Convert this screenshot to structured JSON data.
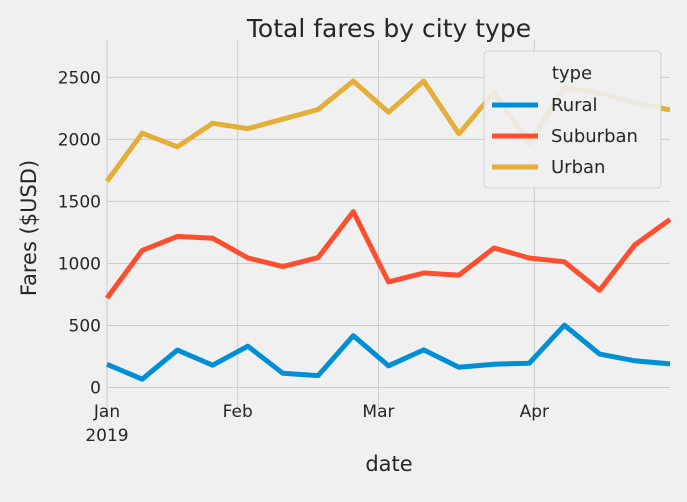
{
  "chart_data": {
    "type": "line",
    "title": "Total fares by city type",
    "xlabel": "date",
    "ylabel": "Fares ($USD)",
    "ylim": [
      -20,
      2640
    ],
    "yticks": [
      0,
      500,
      1000,
      1500,
      2000,
      2500
    ],
    "x": [
      "2019-01-06",
      "2019-01-13",
      "2019-01-20",
      "2019-01-27",
      "2019-02-03",
      "2019-02-10",
      "2019-02-17",
      "2019-02-24",
      "2019-03-03",
      "2019-03-10",
      "2019-03-17",
      "2019-03-24",
      "2019-03-31",
      "2019-04-07",
      "2019-04-14",
      "2019-04-21",
      "2019-04-28"
    ],
    "xlim": [
      "2019-01-06",
      "2019-04-28"
    ],
    "xticks": [
      {
        "date": "2019-01-06",
        "label": "Jan",
        "sublabel": "2019"
      },
      {
        "date": "2019-02-01",
        "label": "Feb",
        "sublabel": ""
      },
      {
        "date": "2019-03-01",
        "label": "Mar",
        "sublabel": ""
      },
      {
        "date": "2019-04-01",
        "label": "Apr",
        "sublabel": ""
      }
    ],
    "grid": true,
    "legend": {
      "title": "type",
      "position": "top-right"
    },
    "series": [
      {
        "name": "Rural",
        "color": "#008fd5",
        "values": [
          187,
          67,
          302,
          180,
          333,
          115,
          96,
          418,
          175,
          303,
          164,
          188,
          196,
          502,
          269,
          215,
          190
        ]
      },
      {
        "name": "Suburban",
        "color": "#fc4f30",
        "values": [
          721,
          1105,
          1218,
          1204,
          1045,
          975,
          1047,
          1418,
          851,
          923,
          906,
          1125,
          1044,
          1013,
          784,
          1150,
          1354
        ]
      },
      {
        "name": "Urban",
        "color": "#e5ae38",
        "values": [
          1662,
          2050,
          1940,
          2130,
          2087,
          2164,
          2241,
          2470,
          2219,
          2471,
          2045,
          2379,
          1966,
          2417,
          2373,
          2297,
          2238
        ]
      }
    ]
  }
}
